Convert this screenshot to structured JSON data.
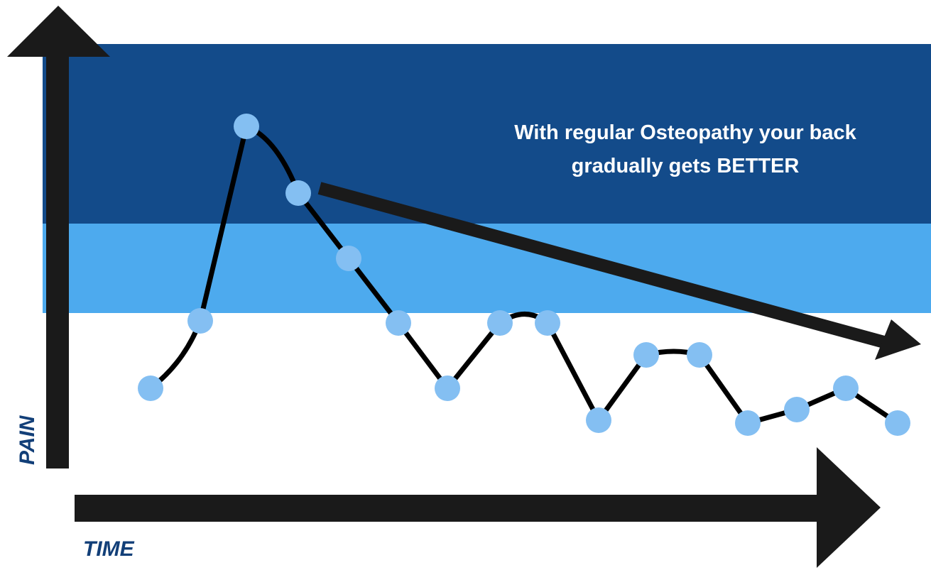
{
  "annotation": {
    "lines": [
      "With regular Osteopathy your back",
      "gradually gets BETTER"
    ]
  },
  "axes": {
    "y_label": "PAIN",
    "x_label": "TIME"
  }
}
